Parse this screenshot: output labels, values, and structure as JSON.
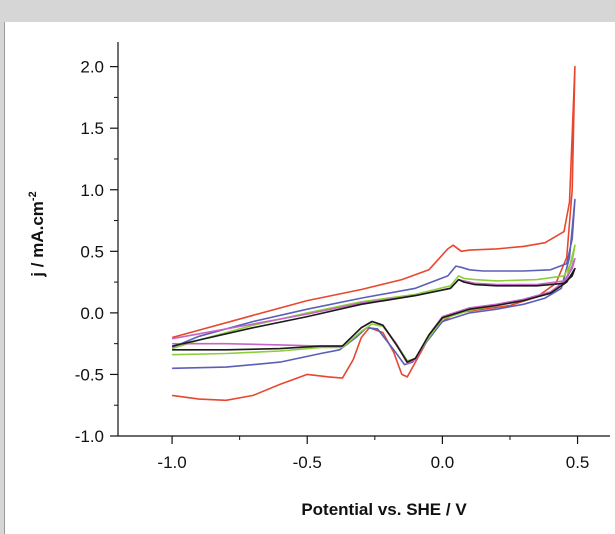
{
  "chart_data": {
    "type": "line",
    "xlabel": "Potential vs. SHE / V",
    "ylabel_main": "j / mA.cm",
    "ylabel_sup": "-2",
    "xlim": [
      -1.2,
      0.62
    ],
    "ylim": [
      -1.0,
      2.2
    ],
    "x_ticks": [
      -1.0,
      -0.5,
      0.0,
      0.5
    ],
    "x_tick_labels": [
      "-1.0",
      "-0.5",
      "0.0",
      "0.5"
    ],
    "y_ticks": [
      -1.0,
      -0.5,
      0.0,
      0.5,
      1.0,
      1.5,
      2.0
    ],
    "y_tick_labels": [
      "-1.0",
      "-0.5",
      "0.0",
      "0.5",
      "1.0",
      "1.5",
      "2.0"
    ],
    "grid": false,
    "series": [
      {
        "color": "#e8472f",
        "points": [
          [
            -1.0,
            -0.67
          ],
          [
            -0.9,
            -0.7
          ],
          [
            -0.8,
            -0.71
          ],
          [
            -0.7,
            -0.67
          ],
          [
            -0.6,
            -0.58
          ],
          [
            -0.5,
            -0.5
          ],
          [
            -0.42,
            -0.52
          ],
          [
            -0.37,
            -0.53
          ],
          [
            -0.33,
            -0.38
          ],
          [
            -0.3,
            -0.2
          ],
          [
            -0.27,
            -0.12
          ],
          [
            -0.22,
            -0.16
          ],
          [
            -0.18,
            -0.32
          ],
          [
            -0.15,
            -0.5
          ],
          [
            -0.13,
            -0.52
          ],
          [
            -0.1,
            -0.4
          ],
          [
            -0.05,
            -0.2
          ],
          [
            0.0,
            -0.07
          ],
          [
            0.05,
            0.0
          ],
          [
            0.15,
            0.03
          ],
          [
            0.25,
            0.06
          ],
          [
            0.35,
            0.13
          ],
          [
            0.42,
            0.24
          ],
          [
            0.46,
            0.45
          ],
          [
            0.48,
            1.0
          ],
          [
            0.49,
            2.0
          ],
          [
            0.48,
            1.45
          ],
          [
            0.47,
            0.9
          ],
          [
            0.45,
            0.66
          ],
          [
            0.38,
            0.57
          ],
          [
            0.3,
            0.54
          ],
          [
            0.2,
            0.52
          ],
          [
            0.1,
            0.51
          ],
          [
            0.07,
            0.5
          ],
          [
            0.04,
            0.55
          ],
          [
            0.02,
            0.52
          ],
          [
            -0.05,
            0.35
          ],
          [
            -0.15,
            0.27
          ],
          [
            -0.3,
            0.19
          ],
          [
            -0.5,
            0.1
          ],
          [
            -0.7,
            -0.02
          ],
          [
            -0.9,
            -0.14
          ],
          [
            -1.0,
            -0.2
          ]
        ]
      },
      {
        "color": "#5b5fb8",
        "points": [
          [
            -1.0,
            -0.45
          ],
          [
            -0.8,
            -0.44
          ],
          [
            -0.6,
            -0.4
          ],
          [
            -0.45,
            -0.33
          ],
          [
            -0.38,
            -0.3
          ],
          [
            -0.32,
            -0.2
          ],
          [
            -0.28,
            -0.12
          ],
          [
            -0.24,
            -0.13
          ],
          [
            -0.18,
            -0.3
          ],
          [
            -0.14,
            -0.42
          ],
          [
            -0.11,
            -0.4
          ],
          [
            -0.06,
            -0.24
          ],
          [
            0.0,
            -0.07
          ],
          [
            0.1,
            0.0
          ],
          [
            0.2,
            0.03
          ],
          [
            0.3,
            0.07
          ],
          [
            0.38,
            0.12
          ],
          [
            0.44,
            0.2
          ],
          [
            0.47,
            0.45
          ],
          [
            0.49,
            0.92
          ],
          [
            0.48,
            0.6
          ],
          [
            0.46,
            0.4
          ],
          [
            0.4,
            0.35
          ],
          [
            0.3,
            0.34
          ],
          [
            0.15,
            0.34
          ],
          [
            0.1,
            0.35
          ],
          [
            0.07,
            0.37
          ],
          [
            0.05,
            0.38
          ],
          [
            0.02,
            0.3
          ],
          [
            -0.1,
            0.2
          ],
          [
            -0.3,
            0.12
          ],
          [
            -0.5,
            0.03
          ],
          [
            -0.7,
            -0.07
          ],
          [
            -0.9,
            -0.19
          ],
          [
            -1.0,
            -0.28
          ]
        ]
      },
      {
        "color": "#8cce3a",
        "points": [
          [
            -1.0,
            -0.34
          ],
          [
            -0.8,
            -0.33
          ],
          [
            -0.6,
            -0.31
          ],
          [
            -0.45,
            -0.28
          ],
          [
            -0.37,
            -0.28
          ],
          [
            -0.3,
            -0.15
          ],
          [
            -0.26,
            -0.09
          ],
          [
            -0.22,
            -0.11
          ],
          [
            -0.17,
            -0.25
          ],
          [
            -0.13,
            -0.39
          ],
          [
            -0.1,
            -0.37
          ],
          [
            -0.05,
            -0.2
          ],
          [
            0.0,
            -0.05
          ],
          [
            0.1,
            0.02
          ],
          [
            0.2,
            0.06
          ],
          [
            0.3,
            0.1
          ],
          [
            0.4,
            0.16
          ],
          [
            0.46,
            0.28
          ],
          [
            0.49,
            0.55
          ],
          [
            0.48,
            0.42
          ],
          [
            0.45,
            0.3
          ],
          [
            0.35,
            0.27
          ],
          [
            0.2,
            0.26
          ],
          [
            0.12,
            0.27
          ],
          [
            0.08,
            0.28
          ],
          [
            0.06,
            0.3
          ],
          [
            0.03,
            0.22
          ],
          [
            -0.1,
            0.15
          ],
          [
            -0.3,
            0.09
          ],
          [
            -0.5,
            0.0
          ],
          [
            -0.7,
            -0.1
          ],
          [
            -0.9,
            -0.22
          ],
          [
            -1.0,
            -0.29
          ]
        ]
      },
      {
        "color": "#c565c5",
        "points": [
          [
            -1.0,
            -0.25
          ],
          [
            -0.8,
            -0.25
          ],
          [
            -0.6,
            -0.26
          ],
          [
            -0.45,
            -0.27
          ],
          [
            -0.37,
            -0.27
          ],
          [
            -0.3,
            -0.12
          ],
          [
            -0.26,
            -0.07
          ],
          [
            -0.22,
            -0.1
          ],
          [
            -0.17,
            -0.25
          ],
          [
            -0.13,
            -0.41
          ],
          [
            -0.1,
            -0.38
          ],
          [
            -0.05,
            -0.18
          ],
          [
            0.0,
            -0.03
          ],
          [
            0.1,
            0.04
          ],
          [
            0.2,
            0.07
          ],
          [
            0.3,
            0.11
          ],
          [
            0.4,
            0.17
          ],
          [
            0.46,
            0.27
          ],
          [
            0.49,
            0.44
          ],
          [
            0.48,
            0.36
          ],
          [
            0.45,
            0.26
          ],
          [
            0.35,
            0.23
          ],
          [
            0.2,
            0.23
          ],
          [
            0.12,
            0.24
          ],
          [
            0.08,
            0.26
          ],
          [
            0.06,
            0.27
          ],
          [
            0.03,
            0.2
          ],
          [
            -0.1,
            0.14
          ],
          [
            -0.3,
            0.08
          ],
          [
            -0.5,
            -0.01
          ],
          [
            -0.7,
            -0.09
          ],
          [
            -0.9,
            -0.17
          ],
          [
            -1.0,
            -0.21
          ]
        ]
      },
      {
        "color": "#1a1a1a",
        "points": [
          [
            -1.0,
            -0.3
          ],
          [
            -0.8,
            -0.3
          ],
          [
            -0.6,
            -0.29
          ],
          [
            -0.45,
            -0.27
          ],
          [
            -0.37,
            -0.27
          ],
          [
            -0.3,
            -0.12
          ],
          [
            -0.26,
            -0.07
          ],
          [
            -0.22,
            -0.1
          ],
          [
            -0.17,
            -0.26
          ],
          [
            -0.13,
            -0.4
          ],
          [
            -0.1,
            -0.37
          ],
          [
            -0.05,
            -0.18
          ],
          [
            0.0,
            -0.04
          ],
          [
            0.1,
            0.03
          ],
          [
            0.2,
            0.06
          ],
          [
            0.3,
            0.1
          ],
          [
            0.4,
            0.16
          ],
          [
            0.46,
            0.25
          ],
          [
            0.49,
            0.36
          ],
          [
            0.48,
            0.3
          ],
          [
            0.45,
            0.24
          ],
          [
            0.35,
            0.22
          ],
          [
            0.2,
            0.22
          ],
          [
            0.12,
            0.23
          ],
          [
            0.08,
            0.25
          ],
          [
            0.06,
            0.27
          ],
          [
            0.03,
            0.2
          ],
          [
            -0.1,
            0.14
          ],
          [
            -0.3,
            0.07
          ],
          [
            -0.5,
            -0.03
          ],
          [
            -0.7,
            -0.12
          ],
          [
            -0.9,
            -0.22
          ],
          [
            -1.0,
            -0.27
          ]
        ]
      }
    ]
  }
}
